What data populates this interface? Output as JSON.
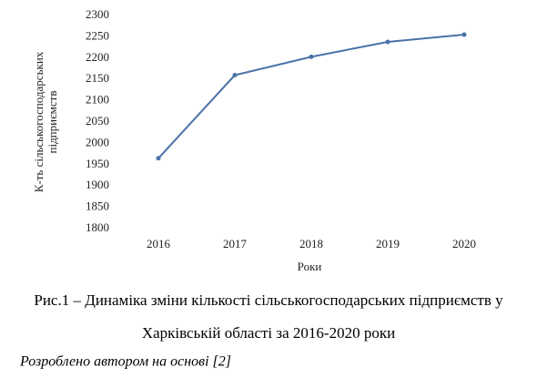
{
  "chart_data": {
    "type": "line",
    "ylabel": [
      "К-ть сільськогосподарських",
      "підприємств"
    ],
    "xlabel": "Роки",
    "categories": [
      "2016",
      "2017",
      "2018",
      "2019",
      "2020"
    ],
    "series": [
      {
        "color": "#4a72a8",
        "values": [
          1965,
          2160,
          2203,
          2238,
          2255
        ]
      }
    ],
    "ylim": [
      1800,
      2300
    ],
    "yticks": [
      1800,
      1850,
      1900,
      1950,
      2000,
      2050,
      2100,
      2150,
      2200,
      2250,
      2300
    ],
    "grid": false
  },
  "caption": [
    "Рис.1 – Динаміка зміни кількості сільськогосподарських підприємств у",
    "Харківській області за 2016-2020 роки"
  ],
  "source": "Розроблено автором на основі [2]"
}
